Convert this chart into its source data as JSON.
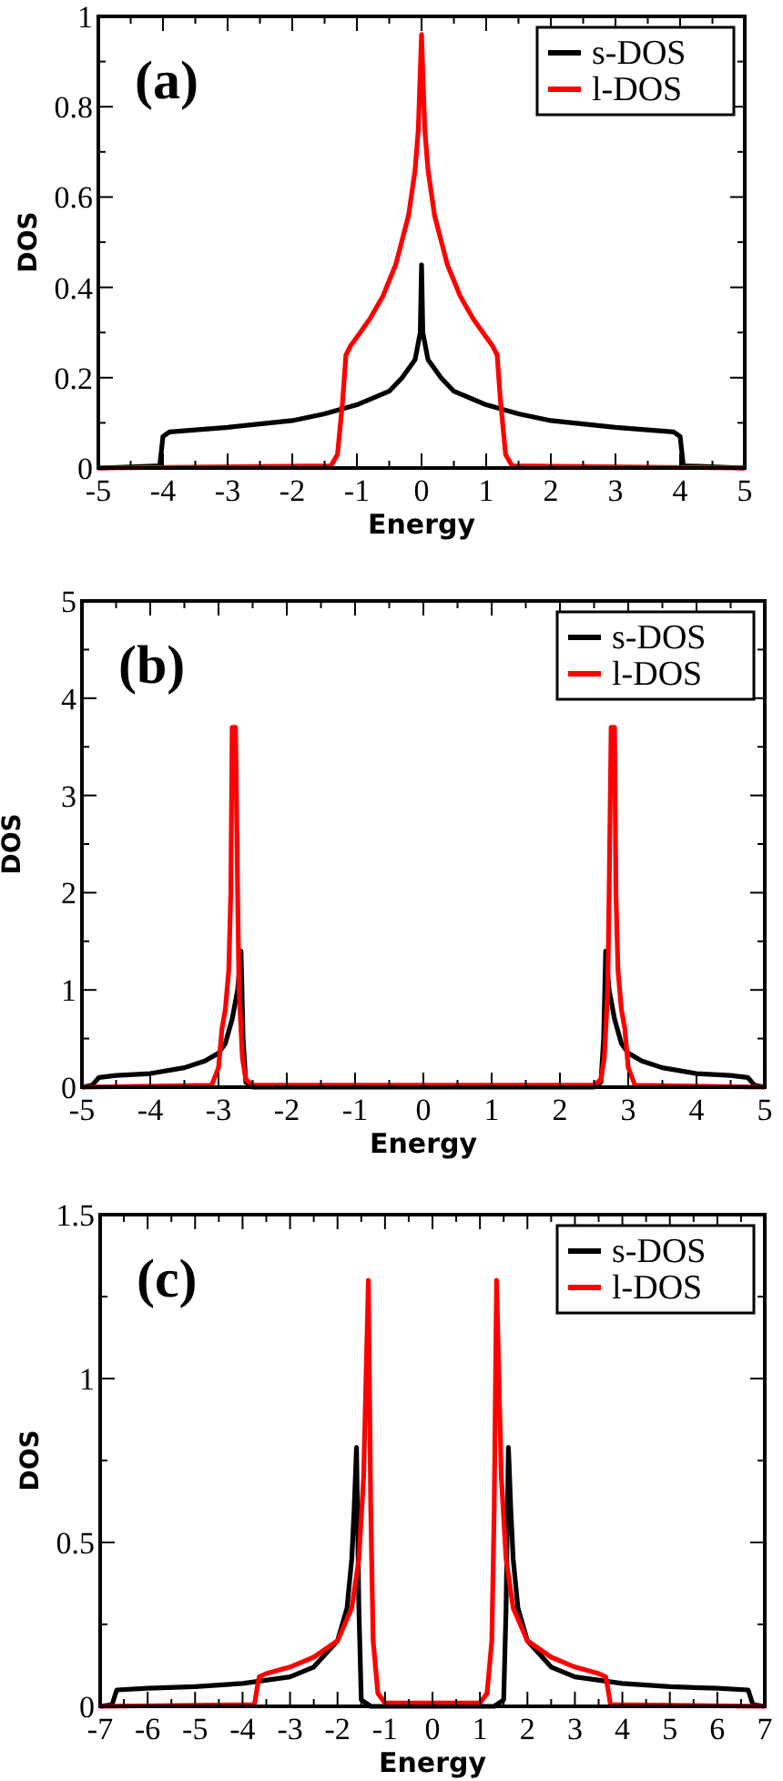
{
  "chart_data": [
    {
      "type": "line",
      "title": "(a)",
      "xlabel": "Energy",
      "ylabel": "DOS",
      "legend": "top right",
      "grid": false,
      "marker": "none",
      "line_style": "solid",
      "xlim": [
        -5,
        5
      ],
      "ylim": [
        0,
        1
      ],
      "xticks": [
        -5,
        {
          "value": -4.5,
          "label": null
        },
        -4,
        {
          "value": -3.5,
          "label": null
        },
        -3,
        {
          "value": -2.5,
          "label": null
        },
        -2,
        {
          "value": -1.5,
          "label": null
        },
        -1,
        {
          "value": -0.5,
          "label": null
        },
        0,
        {
          "value": 0.5,
          "label": null
        },
        1,
        {
          "value": 1.5,
          "label": null
        },
        2,
        {
          "value": 2.5,
          "label": null
        },
        3,
        {
          "value": 3.5,
          "label": null
        },
        4,
        {
          "value": 4.5,
          "label": null
        },
        5
      ],
      "yticks": [
        0,
        {
          "value": 0.1,
          "label": null
        },
        0.2,
        {
          "value": 0.3,
          "label": null
        },
        0.4,
        {
          "value": 0.5,
          "label": null
        },
        0.6,
        {
          "value": 0.7,
          "label": null
        },
        0.8,
        {
          "value": 0.9,
          "label": null
        },
        1
      ],
      "series": [
        {
          "name": "s-DOS",
          "color": "#000000",
          "x": [
            -5,
            -4.05,
            -4,
            -3.9,
            -3,
            -2,
            -1.5,
            -1,
            -0.5,
            -0.3,
            -0.1,
            -0.02,
            0,
            0.02,
            0.1,
            0.3,
            0.5,
            1,
            1.5,
            2,
            3,
            3.9,
            4,
            4.05,
            5
          ],
          "values": [
            0,
            0.005,
            0.07,
            0.08,
            0.09,
            0.105,
            0.12,
            0.14,
            0.17,
            0.2,
            0.24,
            0.3,
            0.45,
            0.3,
            0.24,
            0.2,
            0.17,
            0.14,
            0.12,
            0.105,
            0.09,
            0.08,
            0.07,
            0.005,
            0
          ]
        },
        {
          "name": "l-DOS",
          "color": "#ff0000",
          "x": [
            -5,
            -1.4,
            -1.3,
            -1.22,
            -1.17,
            -1.1,
            -1,
            -0.8,
            -0.6,
            -0.4,
            -0.2,
            -0.1,
            -0.05,
            0,
            0.05,
            0.1,
            0.2,
            0.4,
            0.6,
            0.8,
            1,
            1.1,
            1.17,
            1.22,
            1.3,
            1.4,
            5
          ],
          "values": [
            0,
            0.005,
            0.03,
            0.15,
            0.25,
            0.27,
            0.29,
            0.33,
            0.38,
            0.45,
            0.56,
            0.66,
            0.75,
            0.96,
            0.75,
            0.66,
            0.56,
            0.45,
            0.38,
            0.33,
            0.29,
            0.27,
            0.25,
            0.15,
            0.03,
            0.005,
            0
          ]
        }
      ]
    },
    {
      "type": "line",
      "title": "(b)",
      "xlabel": "Energy",
      "ylabel": "DOS",
      "legend": "top right",
      "grid": false,
      "marker": "none",
      "line_style": "solid",
      "xlim": [
        -5,
        5
      ],
      "ylim": [
        0,
        5
      ],
      "xticks": [
        -5,
        {
          "value": -4.5,
          "label": null
        },
        -4,
        {
          "value": -3.5,
          "label": null
        },
        -3,
        {
          "value": -2.5,
          "label": null
        },
        -2,
        {
          "value": -1.5,
          "label": null
        },
        -1,
        {
          "value": -0.5,
          "label": null
        },
        0,
        {
          "value": 0.5,
          "label": null
        },
        1,
        {
          "value": 1.5,
          "label": null
        },
        2,
        {
          "value": 2.5,
          "label": null
        },
        3,
        {
          "value": 3.5,
          "label": null
        },
        4,
        {
          "value": 4.5,
          "label": null
        },
        5
      ],
      "yticks": [
        0,
        {
          "value": 0.5,
          "label": null
        },
        1,
        {
          "value": 1.5,
          "label": null
        },
        2,
        {
          "value": 2.5,
          "label": null
        },
        3,
        {
          "value": 3.5,
          "label": null
        },
        4,
        {
          "value": 4.5,
          "label": null
        },
        5
      ],
      "series": [
        {
          "name": "s-DOS",
          "color": "#000000",
          "x": [
            -5,
            -4.85,
            -4.75,
            -4.5,
            -4,
            -3.5,
            -3.2,
            -3,
            -2.9,
            -2.8,
            -2.72,
            -2.67,
            -2.64,
            -2.6,
            -2.5,
            2.5,
            2.6,
            2.64,
            2.67,
            2.72,
            2.8,
            2.9,
            3,
            3.2,
            3.5,
            4,
            4.5,
            4.75,
            4.85,
            5
          ],
          "values": [
            0,
            0.02,
            0.1,
            0.12,
            0.14,
            0.2,
            0.27,
            0.35,
            0.45,
            0.7,
            1,
            1.4,
            0.5,
            0.05,
            0,
            0,
            0.05,
            0.5,
            1.4,
            1,
            0.7,
            0.45,
            0.35,
            0.27,
            0.2,
            0.14,
            0.12,
            0.1,
            0.02,
            0
          ]
        },
        {
          "name": "l-DOS",
          "color": "#ff0000",
          "x": [
            -5,
            -3.1,
            -3,
            -2.95,
            -2.9,
            -2.85,
            -2.82,
            -2.8,
            -2.75,
            -2.72,
            -2.7,
            -2.65,
            -2.6,
            -2.5,
            2.5,
            2.6,
            2.65,
            2.7,
            2.72,
            2.75,
            2.8,
            2.82,
            2.85,
            2.9,
            2.95,
            3,
            3.1,
            5
          ],
          "values": [
            0,
            0.02,
            0.2,
            0.6,
            0.8,
            1.2,
            2,
            3.7,
            3.7,
            2,
            1,
            0.3,
            0.08,
            0.02,
            0.02,
            0.08,
            0.3,
            1,
            2,
            3.7,
            3.7,
            2,
            1.2,
            0.8,
            0.6,
            0.2,
            0.02,
            0
          ]
        }
      ]
    },
    {
      "type": "line",
      "title": "(c)",
      "xlabel": "Energy",
      "ylabel": "DOS",
      "legend": "top right",
      "grid": false,
      "marker": "none",
      "line_style": "solid",
      "xlim": [
        -7,
        7
      ],
      "ylim": [
        0,
        1.5
      ],
      "xticks": [
        -7,
        {
          "value": -6.5,
          "label": null
        },
        -6,
        {
          "value": -5.5,
          "label": null
        },
        -5,
        {
          "value": -4.5,
          "label": null
        },
        -4,
        {
          "value": -3.5,
          "label": null
        },
        -3,
        {
          "value": -2.5,
          "label": null
        },
        -2,
        {
          "value": -1.5,
          "label": null
        },
        -1,
        {
          "value": -0.5,
          "label": null
        },
        0,
        {
          "value": 0.5,
          "label": null
        },
        1,
        {
          "value": 1.5,
          "label": null
        },
        2,
        {
          "value": 2.5,
          "label": null
        },
        3,
        {
          "value": 3.5,
          "label": null
        },
        4,
        {
          "value": 4.5,
          "label": null
        },
        5,
        {
          "value": 5.5,
          "label": null
        },
        6,
        {
          "value": 6.5,
          "label": null
        },
        7
      ],
      "yticks": [
        0,
        {
          "value": 0.25,
          "label": null
        },
        0.5,
        {
          "value": 0.75,
          "label": null
        },
        1,
        {
          "value": 1.25,
          "label": null
        },
        1.5
      ],
      "series": [
        {
          "name": "s-DOS",
          "color": "#000000",
          "x": [
            -7,
            -6.75,
            -6.65,
            -6,
            -5,
            -4,
            -3,
            -2.5,
            -2,
            -1.8,
            -1.7,
            -1.65,
            -1.6,
            -1.55,
            -1.5,
            -1.3,
            1.3,
            1.5,
            1.55,
            1.6,
            1.65,
            1.7,
            1.8,
            2,
            2.5,
            3,
            4,
            5,
            6,
            6.65,
            6.75,
            7
          ],
          "values": [
            0,
            0.005,
            0.05,
            0.055,
            0.06,
            0.07,
            0.09,
            0.12,
            0.2,
            0.3,
            0.45,
            0.6,
            0.79,
            0.3,
            0.02,
            0,
            0,
            0.02,
            0.3,
            0.79,
            0.6,
            0.45,
            0.3,
            0.2,
            0.12,
            0.09,
            0.07,
            0.06,
            0.055,
            0.05,
            0.005,
            0
          ]
        },
        {
          "name": "l-DOS",
          "color": "#ff0000",
          "x": [
            -7,
            -3.75,
            -3.7,
            -3.65,
            -3.5,
            -3,
            -2.5,
            -2,
            -1.7,
            -1.55,
            -1.45,
            -1.4,
            -1.35,
            -1.3,
            -1.25,
            -1.15,
            -1,
            1,
            1.15,
            1.25,
            1.3,
            1.35,
            1.4,
            1.45,
            1.55,
            1.7,
            2,
            2.5,
            3,
            3.5,
            3.65,
            3.7,
            3.75,
            7
          ],
          "values": [
            0,
            0.005,
            0.05,
            0.09,
            0.1,
            0.12,
            0.15,
            0.2,
            0.3,
            0.45,
            0.7,
            1,
            1.3,
            0.6,
            0.2,
            0.04,
            0.01,
            0.01,
            0.04,
            0.2,
            0.6,
            1.3,
            1,
            0.7,
            0.45,
            0.3,
            0.2,
            0.15,
            0.12,
            0.1,
            0.09,
            0.05,
            0.005,
            0
          ]
        }
      ]
    }
  ]
}
